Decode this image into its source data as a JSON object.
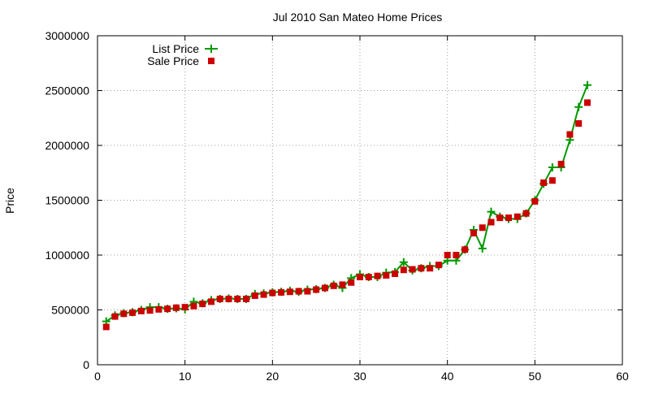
{
  "chart_data": {
    "type": "line",
    "title": "Jul 2010 San Mateo Home Prices",
    "xlabel": "",
    "ylabel": "Price",
    "xlim": [
      0,
      60
    ],
    "ylim": [
      0,
      3000000
    ],
    "xticks": [
      0,
      10,
      20,
      30,
      40,
      50,
      60
    ],
    "yticks": [
      0,
      500000,
      1000000,
      1500000,
      2000000,
      2500000,
      3000000
    ],
    "grid": true,
    "legend_position": "top-left",
    "series": [
      {
        "name": "List Price",
        "style": "line-cross",
        "color": "#009900",
        "x": [
          1,
          2,
          3,
          4,
          5,
          6,
          7,
          8,
          9,
          10,
          11,
          12,
          13,
          14,
          15,
          16,
          17,
          18,
          19,
          20,
          21,
          22,
          23,
          24,
          25,
          26,
          27,
          28,
          29,
          30,
          31,
          32,
          33,
          34,
          35,
          36,
          37,
          38,
          39,
          40,
          41,
          42,
          43,
          44,
          45,
          46,
          47,
          48,
          49,
          50,
          51,
          52,
          53,
          54,
          55,
          56
        ],
        "y": [
          395000,
          450000,
          470000,
          480000,
          500000,
          525000,
          525000,
          510000,
          515000,
          505000,
          575000,
          560000,
          590000,
          600000,
          605000,
          600000,
          600000,
          645000,
          650000,
          660000,
          665000,
          675000,
          665000,
          685000,
          690000,
          700000,
          730000,
          700000,
          790000,
          825000,
          800000,
          800000,
          840000,
          845000,
          935000,
          860000,
          880000,
          900000,
          900000,
          950000,
          950000,
          1050000,
          1230000,
          1060000,
          1395000,
          1350000,
          1330000,
          1330000,
          1380000,
          1500000,
          1650000,
          1800000,
          1800000,
          2050000,
          2350000,
          2550000
        ]
      },
      {
        "name": "Sale Price",
        "style": "square",
        "color": "#cc0000",
        "x": [
          1,
          2,
          3,
          4,
          5,
          6,
          7,
          8,
          9,
          10,
          11,
          12,
          13,
          14,
          15,
          16,
          17,
          18,
          19,
          20,
          21,
          22,
          23,
          24,
          25,
          26,
          27,
          28,
          29,
          30,
          31,
          32,
          33,
          34,
          35,
          36,
          37,
          38,
          39,
          40,
          41,
          42,
          43,
          44,
          45,
          46,
          47,
          48,
          49,
          50,
          51,
          52,
          53,
          54,
          55,
          56
        ],
        "y": [
          345000,
          440000,
          465000,
          475000,
          490000,
          495000,
          505000,
          510000,
          520000,
          525000,
          535000,
          555000,
          575000,
          600000,
          600000,
          600000,
          600000,
          630000,
          640000,
          655000,
          660000,
          665000,
          670000,
          670000,
          685000,
          700000,
          720000,
          730000,
          750000,
          800000,
          800000,
          810000,
          815000,
          830000,
          865000,
          870000,
          880000,
          880000,
          910000,
          1000000,
          1000000,
          1050000,
          1200000,
          1250000,
          1300000,
          1340000,
          1340000,
          1350000,
          1380000,
          1490000,
          1660000,
          1680000,
          1830000,
          2100000,
          2200000,
          2390000
        ]
      }
    ]
  }
}
